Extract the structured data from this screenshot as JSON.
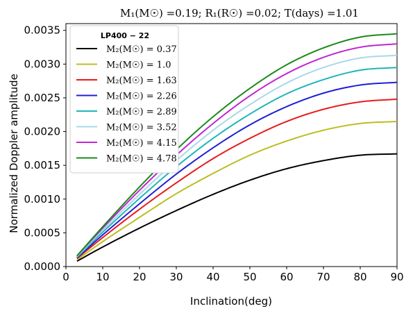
{
  "chart_data": {
    "type": "line",
    "title": "M₁(M☉) =0.19;  R₁(R☉) =0.02;  T(days) =1.01",
    "xlabel": "Inclination(deg)",
    "ylabel": "Normalized Doppler amplitude",
    "xlim": [
      0,
      90
    ],
    "ylim": [
      0,
      0.0036
    ],
    "xticks": [
      0,
      10,
      20,
      30,
      40,
      50,
      60,
      70,
      80,
      90
    ],
    "xtick_labels": [
      "0",
      "10",
      "20",
      "30",
      "40",
      "50",
      "60",
      "70",
      "80",
      "90"
    ],
    "yticks": [
      0,
      0.0005,
      0.001,
      0.0015,
      0.002,
      0.0025,
      0.003,
      0.0035
    ],
    "ytick_labels": [
      "0.0000",
      "0.0005",
      "0.0010",
      "0.0015",
      "0.0020",
      "0.0025",
      "0.0030",
      "0.0035"
    ],
    "grid": false,
    "legend_title": "LP400 − 22",
    "legend_position": "upper-left",
    "x": [
      3,
      10,
      20,
      30,
      40,
      50,
      60,
      70,
      80,
      90
    ],
    "series": [
      {
        "name": "M₂(M☉) =  0.37",
        "color": "#000000",
        "values": [
          8e-05,
          0.00029,
          0.00057,
          0.00083,
          0.00107,
          0.00128,
          0.00145,
          0.00157,
          0.00165,
          0.00167
        ]
      },
      {
        "name": "M₂(M☉) =  1.0",
        "color": "#bcbd22",
        "values": [
          0.0001,
          0.00037,
          0.00073,
          0.00108,
          0.00138,
          0.00165,
          0.00186,
          0.00202,
          0.00212,
          0.00215
        ]
      },
      {
        "name": "M₂(M☉) =  1.63",
        "color": "#e8191b",
        "values": [
          0.00012,
          0.00043,
          0.00085,
          0.00124,
          0.0016,
          0.0019,
          0.00215,
          0.00233,
          0.00244,
          0.00248
        ]
      },
      {
        "name": "M₂(M☉) =  2.26",
        "color": "#1f1fd6",
        "values": [
          0.00013,
          0.00047,
          0.00093,
          0.00137,
          0.00176,
          0.0021,
          0.00237,
          0.00257,
          0.00269,
          0.00273
        ]
      },
      {
        "name": "M₂(M☉) =  2.89",
        "color": "#1fb5b8",
        "values": [
          0.00014,
          0.00051,
          0.00101,
          0.00148,
          0.0019,
          0.00226,
          0.00256,
          0.00277,
          0.00291,
          0.00295
        ]
      },
      {
        "name": "M₂(M☉) =  3.52",
        "color": "#a8d8e8",
        "values": [
          0.00015,
          0.00054,
          0.00107,
          0.00157,
          0.00202,
          0.0024,
          0.00272,
          0.00295,
          0.00309,
          0.00313
        ]
      },
      {
        "name": "M₂(M☉) =  4.15",
        "color": "#c026d3",
        "values": [
          0.00016,
          0.00057,
          0.00113,
          0.00165,
          0.00212,
          0.00253,
          0.00286,
          0.0031,
          0.00325,
          0.0033
        ]
      },
      {
        "name": "M₂(M☉) =  4.78",
        "color": "#1a8a1a",
        "values": [
          0.00016,
          0.00059,
          0.00118,
          0.00173,
          0.00222,
          0.00264,
          0.00299,
          0.00324,
          0.0034,
          0.00345
        ]
      }
    ]
  }
}
